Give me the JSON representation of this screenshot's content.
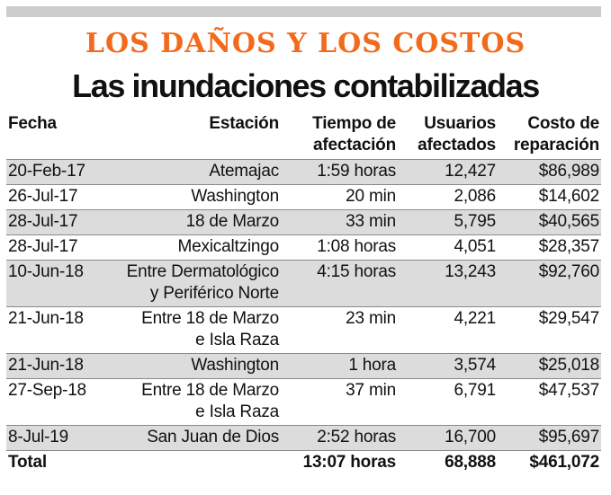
{
  "kicker": "LOS DAÑOS Y LOS COSTOS",
  "headline": "Las inundaciones contabilizadas",
  "table": {
    "headers": {
      "date": [
        "Fecha"
      ],
      "station": [
        "Estación"
      ],
      "time": [
        "Tiempo de",
        "afectación"
      ],
      "users": [
        "Usuarios",
        "afectados"
      ],
      "cost": [
        "Costo de",
        "reparación"
      ]
    },
    "rows": [
      {
        "date": "20-Feb-17",
        "station": [
          "Atemajac"
        ],
        "time": "1:59 horas",
        "users": "12,427",
        "cost": "$86,989"
      },
      {
        "date": "26-Jul-17",
        "station": [
          "Washington"
        ],
        "time": "20 min",
        "users": "2,086",
        "cost": "$14,602"
      },
      {
        "date": "28-Jul-17",
        "station": [
          "18 de Marzo"
        ],
        "time": "33 min",
        "users": "5,795",
        "cost": "$40,565"
      },
      {
        "date": "28-Jul-17",
        "station": [
          "Mexicaltzingo"
        ],
        "time": "1:08 horas",
        "users": "4,051",
        "cost": "$28,357"
      },
      {
        "date": "10-Jun-18",
        "station": [
          "Entre Dermatológico",
          "y Periférico Norte"
        ],
        "time": "4:15 horas",
        "users": "13,243",
        "cost": "$92,760"
      },
      {
        "date": "21-Jun-18",
        "station": [
          "Entre 18 de Marzo",
          "e Isla Raza"
        ],
        "time": "23 min",
        "users": "4,221",
        "cost": "$29,547"
      },
      {
        "date": "21-Jun-18",
        "station": [
          "Washington"
        ],
        "time": "1 hora",
        "users": "3,574",
        "cost": "$25,018"
      },
      {
        "date": "27-Sep-18",
        "station": [
          "Entre 18 de Marzo",
          "e Isla Raza"
        ],
        "time": "37 min",
        "users": "6,791",
        "cost": "$47,537"
      },
      {
        "date": "8-Jul-19",
        "station": [
          "San Juan de Dios"
        ],
        "time": "2:52 horas",
        "users": "16,700",
        "cost": "$95,697"
      }
    ],
    "total": {
      "label": "Total",
      "time": "13:07 horas",
      "users": "68,888",
      "cost": "$461,072"
    }
  }
}
